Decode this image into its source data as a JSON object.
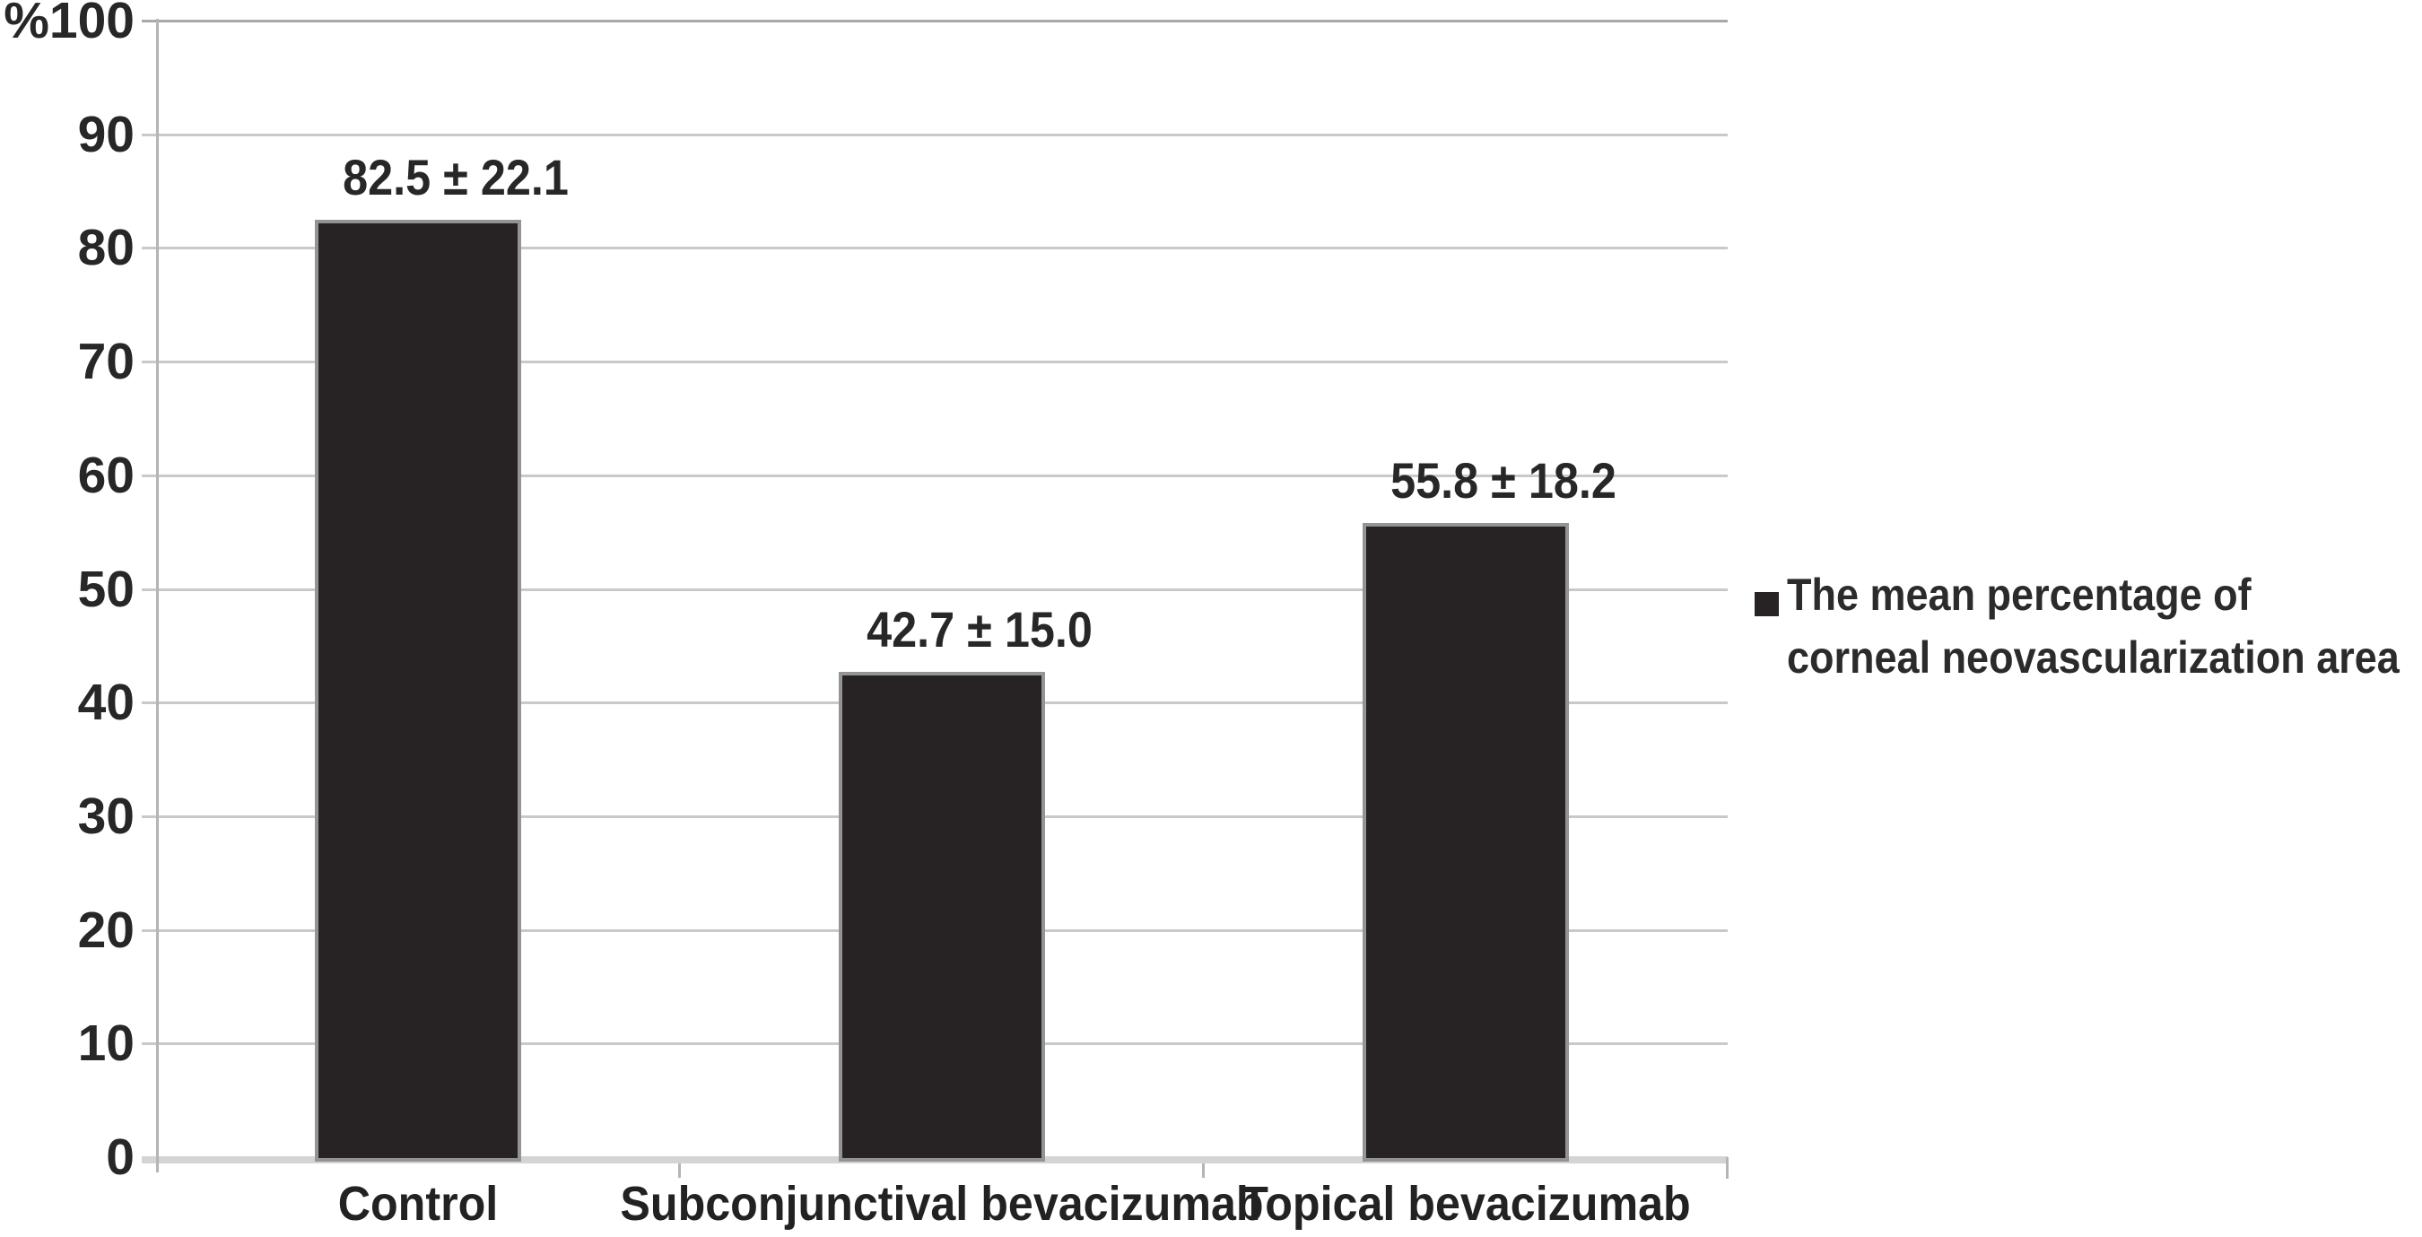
{
  "chart_data": {
    "type": "bar",
    "categories": [
      "Control",
      "Subconjunctival bevacizumab",
      "Topical bevacizumab"
    ],
    "series": [
      {
        "name": "The mean percentage of corneal neovascularization area",
        "values": [
          82.5,
          42.7,
          55.8
        ],
        "errors": [
          22.1,
          15.0,
          18.2
        ]
      }
    ],
    "value_labels": [
      "82.5 ± 22.1",
      "42.7 ± 15.0",
      "55.8 ± 18.2"
    ],
    "title": "",
    "xlabel": "",
    "ylabel": "%",
    "ylim": [
      0,
      100
    ],
    "yticks": [
      {
        "value": 0,
        "label": "0"
      },
      {
        "value": 10,
        "label": "10"
      },
      {
        "value": 20,
        "label": "20"
      },
      {
        "value": 30,
        "label": "30"
      },
      {
        "value": 40,
        "label": "40"
      },
      {
        "value": 50,
        "label": "50"
      },
      {
        "value": 60,
        "label": "60"
      },
      {
        "value": 70,
        "label": "70"
      },
      {
        "value": 80,
        "label": "80"
      },
      {
        "value": 90,
        "label": "90"
      },
      {
        "value": 100,
        "label": "%100"
      }
    ],
    "grid": true,
    "legend": {
      "position": "right",
      "marker": "square",
      "lines": [
        "The mean percentage of",
        "corneal neovascularization area"
      ]
    },
    "colors": {
      "bar_fill": "#272324",
      "bar_border": "#949494",
      "gridline": "#c9c9c9",
      "gridline_top": "#a8a8a8",
      "baseline": "#d4d4d4",
      "axis": "#b5b5b5",
      "text": "#272727"
    }
  }
}
